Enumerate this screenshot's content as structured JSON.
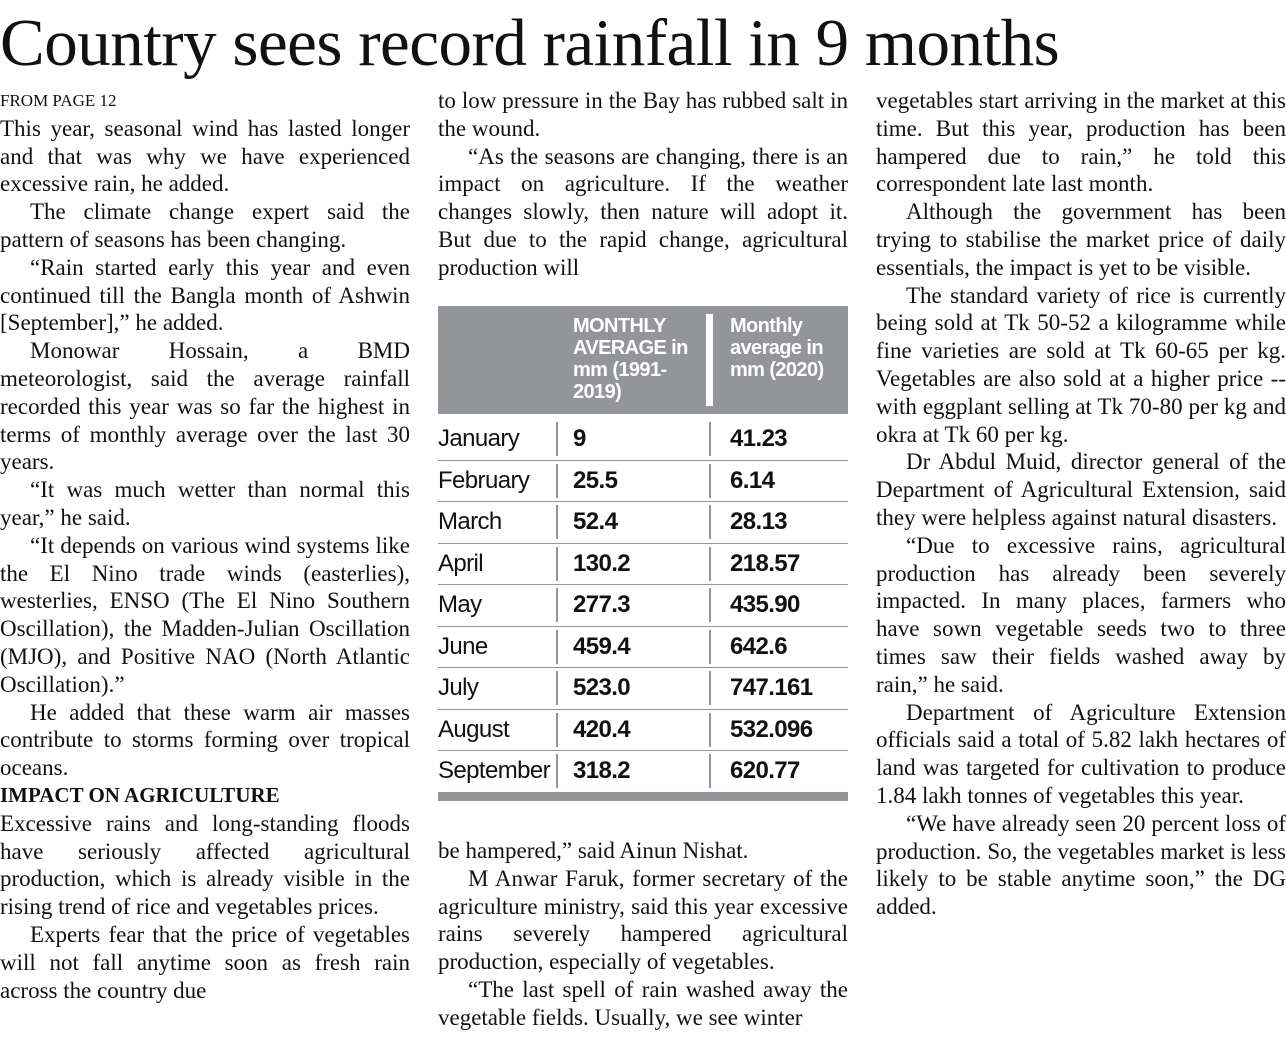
{
  "headline": "Country sees record rainfall in 9 months",
  "column_1": {
    "kicker": "FROM PAGE 12",
    "before_subhead": [
      "This year, seasonal wind has lasted longer and that was why we have experienced excessive rain, he added.",
      "The climate change expert said the pattern of seasons has been changing.",
      "“Rain started early this year and even continued till the Bangla month of Ashwin [September],” he added.",
      "Monowar Hossain, a BMD meteorologist, said the average rainfall recorded this year was so far the highest in terms of monthly average over the last 30 years.",
      "“It was much wetter than normal this year,” he said.",
      "“It depends on various wind systems like the El Nino trade winds (easterlies), westerlies, ENSO (The El Nino Southern Oscillation), the Madden-Julian Oscillation (MJO), and Positive NAO (North Atlantic Oscillation).”",
      "He added that these warm air masses contribute to storms forming over tropical oceans."
    ],
    "subhead": "IMPACT ON AGRICULTURE",
    "after_subhead": [
      "Excessive rains and long-standing floods have seriously affected agricultural production, which is already visible in the rising trend of rice and vegetables prices.",
      "Experts fear that the price of vegetables will not fall anytime soon as fresh rain across the country due"
    ]
  },
  "column_2": {
    "above_table": [
      "to low pressure in the Bay has rubbed salt in the wound.",
      "“As the seasons are changing, there is an impact on agriculture. If the weather changes slowly, then nature will adopt it. But due to the rapid change, agricultural production will"
    ],
    "table": {
      "headers": [
        "MONTHLY AVERAGE in mm (1991-2019)",
        "Monthly average in mm (2020)"
      ],
      "rows": [
        [
          "January",
          "9",
          "41.23"
        ],
        [
          "February",
          "25.5",
          "6.14"
        ],
        [
          "March",
          "52.4",
          "28.13"
        ],
        [
          "April",
          "130.2",
          "218.57"
        ],
        [
          "May",
          "277.3",
          "435.90"
        ],
        [
          "June",
          "459.4",
          "642.6"
        ],
        [
          "July",
          "523.0",
          "747.161"
        ],
        [
          "August",
          "420.4",
          "532.096"
        ],
        [
          "September",
          "318.2",
          "620.77"
        ]
      ]
    },
    "below_table": [
      "be hampered,” said Ainun Nishat.",
      "M Anwar Faruk, former secretary of the agriculture ministry, said this year excessive rains severely hampered agricultural production, especially of vegetables.",
      "“The last spell of rain washed away the vegetable fields. Usually, we see winter"
    ]
  },
  "column_3": {
    "paragraphs": [
      "vegetables start arriving in the market at this time. But this year, production has been hampered due to rain,” he told this correspondent late last month.",
      "Although the government has been trying to stabilise the market price of daily essentials, the impact is yet to be visible.",
      "The standard variety of rice is currently being sold at Tk 50-52 a kilogramme while fine varieties are sold at Tk 60-65 per kg. Vegetables are also sold at a higher price -- with eggplant selling at Tk 70-80 per kg and okra at Tk 60 per kg.",
      "Dr Abdul Muid, director general of the Department of Agricultural Extension, said they were helpless against natural disasters.",
      "“Due to excessive rains, agricultural production has already been severely impacted. In many places, farmers who have sown vegetable seeds two to three times saw their fields washed away by rain,” he said.",
      "Department of Agriculture Extension officials said a total of 5.82 lakh hectares of land was targeted for cultivation to produce 1.84 lakh tonnes of vegetables this year.",
      "“We have already seen 20 percent loss of production. So, the vegetables market is less likely to be stable anytime soon,” the DG added."
    ]
  }
}
